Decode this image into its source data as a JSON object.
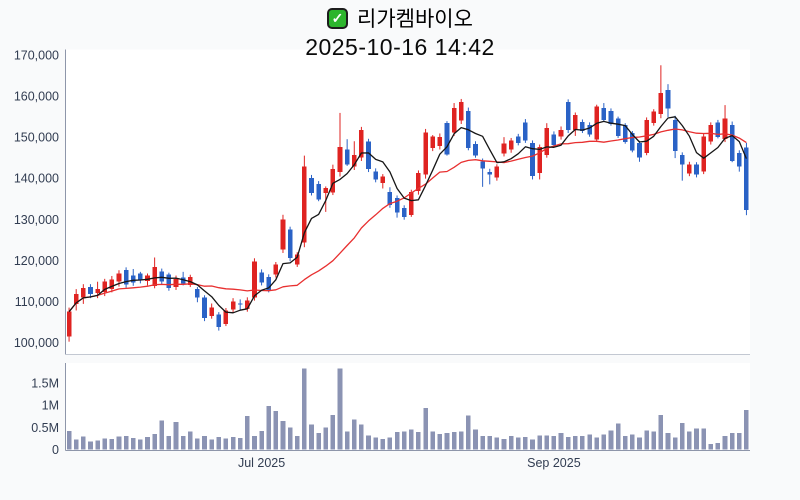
{
  "header": {
    "check_glyph": "✓",
    "title": "리가켐바이오",
    "datetime": "2025-10-16 14:42"
  },
  "chart_data": {
    "type": "candlestick",
    "title": "리가켐바이오",
    "subtitle": "2025-10-16 14:42",
    "grid": false,
    "legend": "none",
    "price_axis": {
      "range": [
        100000,
        170000
      ],
      "ticks": [
        {
          "label": "170,000",
          "value": 170000
        },
        {
          "label": "160,000",
          "value": 160000
        },
        {
          "label": "150,000",
          "value": 150000
        },
        {
          "label": "140,000",
          "value": 140000
        },
        {
          "label": "130,000",
          "value": 130000
        },
        {
          "label": "120,000",
          "value": 120000
        },
        {
          "label": "110,000",
          "value": 110000
        },
        {
          "label": "100,000",
          "value": 100000
        }
      ]
    },
    "volume_axis": {
      "unit": "M",
      "ticks": [
        {
          "label": "1.5M",
          "value": 1.5
        },
        {
          "label": "1M",
          "value": 1.0
        },
        {
          "label": "0.5M",
          "value": 0.5
        },
        {
          "label": "0",
          "value": 0
        }
      ]
    },
    "x_ticks": [
      {
        "label": "Jul 2025",
        "index": 27
      },
      {
        "label": "Sep 2025",
        "index": 68
      }
    ],
    "overlays": [
      {
        "name": "ma-fast",
        "window": 5,
        "color_key": "ma_fast"
      },
      {
        "name": "ma-slow",
        "window": 20,
        "color_key": "ma_slow"
      }
    ],
    "colors": {
      "up": "#df2321",
      "down": "#2a62c6",
      "volume": "#8b93b3",
      "ma_fast": "#161616",
      "ma_slow": "#e83030",
      "axis_text": "#323d52",
      "axis_line": "#8e96aa",
      "pane_border": "#c3c8d2",
      "pane_bg": "#ffffff",
      "page_bg": "#f9fafb"
    },
    "candles_format": [
      "open",
      "high",
      "low",
      "close",
      "volume_millions"
    ],
    "candles": [
      [
        101500,
        108500,
        100200,
        107500,
        0.42
      ],
      [
        109400,
        113000,
        107800,
        111800,
        0.22
      ],
      [
        110900,
        114200,
        109400,
        113300,
        0.29
      ],
      [
        113500,
        114200,
        110800,
        111800,
        0.18
      ],
      [
        112000,
        114800,
        110800,
        113000,
        0.2
      ],
      [
        112300,
        115500,
        111300,
        114800,
        0.25
      ],
      [
        113000,
        116200,
        112200,
        115400,
        0.24
      ],
      [
        114800,
        117600,
        113600,
        116800,
        0.29
      ],
      [
        117700,
        118300,
        113300,
        114100,
        0.3
      ],
      [
        116300,
        117900,
        113800,
        114600,
        0.26
      ],
      [
        116800,
        117200,
        114400,
        115200,
        0.22
      ],
      [
        115000,
        116800,
        113900,
        116300,
        0.28
      ],
      [
        113800,
        120700,
        113200,
        118400,
        0.35
      ],
      [
        117300,
        118000,
        114200,
        114900,
        0.65
      ],
      [
        116500,
        117000,
        112600,
        113300,
        0.3
      ],
      [
        113500,
        116300,
        112800,
        115500,
        0.62
      ],
      [
        115800,
        117200,
        113900,
        114400,
        0.3
      ],
      [
        114000,
        116500,
        113500,
        116000,
        0.4
      ],
      [
        113000,
        113500,
        109800,
        110900,
        0.25
      ],
      [
        110900,
        111500,
        105200,
        106000,
        0.3
      ],
      [
        106400,
        109500,
        105800,
        108500,
        0.22
      ],
      [
        106800,
        107400,
        102900,
        103800,
        0.28
      ],
      [
        104500,
        108400,
        104000,
        107800,
        0.25
      ],
      [
        108000,
        110800,
        107300,
        110000,
        0.28
      ],
      [
        109500,
        110500,
        107800,
        109200,
        0.26
      ],
      [
        108200,
        111000,
        107500,
        110200,
        0.75
      ],
      [
        110900,
        120500,
        110200,
        119700,
        0.3
      ],
      [
        117000,
        117800,
        113900,
        114600,
        0.42
      ],
      [
        116000,
        116600,
        112200,
        112800,
        0.98
      ],
      [
        116500,
        119600,
        115800,
        119000,
        0.86
      ],
      [
        122600,
        131100,
        121800,
        129900,
        0.64
      ],
      [
        127500,
        128200,
        119800,
        120600,
        0.5
      ],
      [
        119000,
        122000,
        118400,
        121400,
        0.3
      ],
      [
        124300,
        145500,
        123200,
        142800,
        1.82
      ],
      [
        140000,
        140800,
        135800,
        136400,
        0.56
      ],
      [
        138600,
        139300,
        134400,
        134800,
        0.37
      ],
      [
        136400,
        138000,
        131800,
        137600,
        0.5
      ],
      [
        136500,
        143300,
        135900,
        142200,
        0.78
      ],
      [
        141500,
        155900,
        140400,
        147600,
        1.82
      ],
      [
        147000,
        149500,
        143000,
        143400,
        0.41
      ],
      [
        142800,
        149000,
        142000,
        145700,
        0.67
      ],
      [
        145000,
        152500,
        144200,
        151800,
        0.56
      ],
      [
        149000,
        149600,
        141500,
        142300,
        0.32
      ],
      [
        141600,
        142400,
        139000,
        139700,
        0.27
      ],
      [
        138800,
        141000,
        137500,
        140400,
        0.24
      ],
      [
        136700,
        137800,
        132800,
        133500,
        0.27
      ],
      [
        135200,
        135800,
        130400,
        131600,
        0.39
      ],
      [
        132800,
        133400,
        129900,
        130600,
        0.41
      ],
      [
        131100,
        137200,
        130600,
        136700,
        0.45
      ],
      [
        136900,
        141900,
        136000,
        141300,
        0.39
      ],
      [
        140900,
        152000,
        139900,
        151100,
        0.93
      ],
      [
        147400,
        150500,
        146600,
        150100,
        0.4
      ],
      [
        147800,
        150900,
        147000,
        150000,
        0.35
      ],
      [
        153400,
        153900,
        145500,
        145800,
        0.37
      ],
      [
        151100,
        158300,
        150300,
        157100,
        0.39
      ],
      [
        154000,
        159300,
        153200,
        158600,
        0.41
      ],
      [
        156400,
        157200,
        146800,
        147400,
        0.76
      ],
      [
        148300,
        149000,
        145000,
        145500,
        0.45
      ],
      [
        144100,
        144800,
        137900,
        142400,
        0.3
      ],
      [
        141500,
        142300,
        138500,
        140900,
        0.3
      ],
      [
        140200,
        143400,
        139400,
        142800,
        0.27
      ],
      [
        146000,
        150000,
        145300,
        148400,
        0.24
      ],
      [
        147000,
        149800,
        146200,
        149200,
        0.3
      ],
      [
        150100,
        150800,
        148000,
        148600,
        0.27
      ],
      [
        153600,
        154400,
        148600,
        149200,
        0.28
      ],
      [
        148600,
        149200,
        139700,
        140500,
        0.22
      ],
      [
        141300,
        148200,
        139700,
        147600,
        0.32
      ],
      [
        145700,
        153400,
        145000,
        152200,
        0.32
      ],
      [
        150600,
        151400,
        147600,
        148100,
        0.3
      ],
      [
        150100,
        152600,
        149400,
        151800,
        0.37
      ],
      [
        158600,
        159200,
        151000,
        151800,
        0.28
      ],
      [
        151800,
        156000,
        150300,
        155400,
        0.3
      ],
      [
        153700,
        154300,
        151000,
        151500,
        0.3
      ],
      [
        153000,
        153600,
        150100,
        150600,
        0.34
      ],
      [
        149400,
        157900,
        148800,
        157500,
        0.27
      ],
      [
        157100,
        158300,
        153700,
        154200,
        0.34
      ],
      [
        156400,
        157000,
        152800,
        153200,
        0.43
      ],
      [
        154500,
        155000,
        149800,
        150300,
        0.58
      ],
      [
        153000,
        153400,
        148400,
        148800,
        0.3
      ],
      [
        151000,
        151500,
        146300,
        146700,
        0.34
      ],
      [
        148600,
        149100,
        144000,
        145100,
        0.27
      ],
      [
        146200,
        154800,
        145600,
        154200,
        0.43
      ],
      [
        153500,
        156800,
        152800,
        156200,
        0.41
      ],
      [
        155600,
        167500,
        154600,
        160800,
        0.78
      ],
      [
        161500,
        162900,
        154900,
        157000,
        0.37
      ],
      [
        154200,
        155200,
        144900,
        146600,
        0.27
      ],
      [
        145700,
        146300,
        139400,
        143400,
        0.59
      ],
      [
        141200,
        144000,
        140500,
        143300,
        0.41
      ],
      [
        143300,
        143900,
        140200,
        140900,
        0.47
      ],
      [
        141600,
        150900,
        141000,
        150200,
        0.47
      ],
      [
        148900,
        153600,
        148200,
        153000,
        0.12
      ],
      [
        153600,
        154200,
        149700,
        150000,
        0.15
      ],
      [
        149500,
        157800,
        148800,
        154500,
        0.3
      ],
      [
        153000,
        153800,
        143900,
        144200,
        0.37
      ],
      [
        146200,
        146800,
        141600,
        142900,
        0.37
      ],
      [
        147500,
        148600,
        131000,
        132300,
        0.89
      ]
    ]
  }
}
